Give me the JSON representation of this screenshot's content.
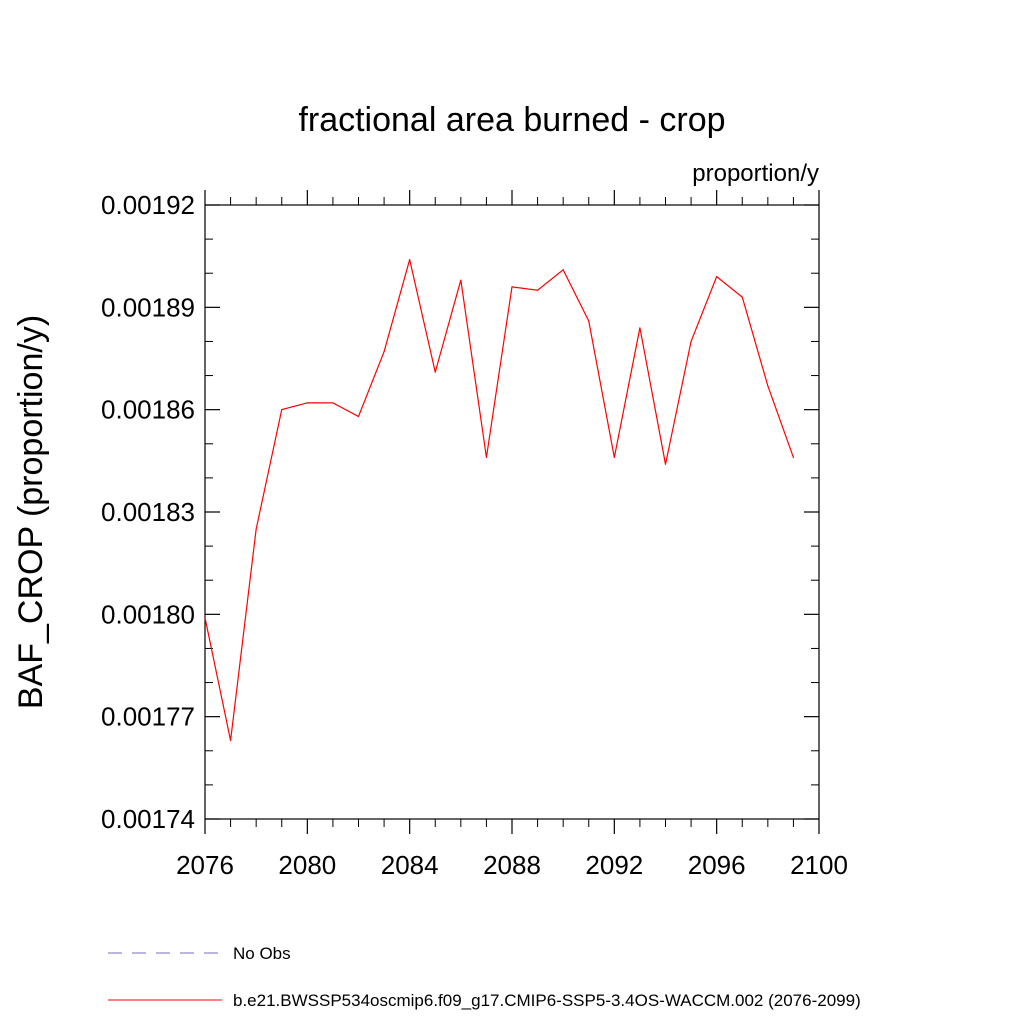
{
  "chart_data": {
    "type": "line",
    "title": "fractional area burned - crop",
    "units": "proportion/y",
    "ylabel": "BAF_CROP  (proportion/y)",
    "xlabel": "",
    "xlim": [
      2076,
      2100
    ],
    "ylim": [
      0.00174,
      0.00192
    ],
    "xticks": [
      2076,
      2080,
      2084,
      2088,
      2092,
      2096,
      2100
    ],
    "xtick_labels": [
      "2076",
      "2080",
      "2084",
      "2088",
      "2092",
      "2096",
      "2100"
    ],
    "yticks": [
      0.00174,
      0.00177,
      0.0018,
      0.00183,
      0.00186,
      0.00189,
      0.00192
    ],
    "ytick_labels": [
      "0.00174",
      "0.00177",
      "0.00180",
      "0.00183",
      "0.00186",
      "0.00189",
      "0.00192"
    ],
    "series": [
      {
        "name": "No Obs",
        "color": "#7b68c0",
        "style": "dashed",
        "x": [],
        "y": []
      },
      {
        "name": "b.e21.BWSSP534oscmip6.f09_g17.CMIP6-SSP5-3.4OS-WACCM.002 (2076-2099)",
        "color": "#ff0000",
        "style": "solid",
        "x": [
          2076,
          2077,
          2078,
          2079,
          2080,
          2081,
          2082,
          2083,
          2084,
          2085,
          2086,
          2087,
          2088,
          2089,
          2090,
          2091,
          2092,
          2093,
          2094,
          2095,
          2096,
          2097,
          2098,
          2099
        ],
        "y": [
          0.001799,
          0.001763,
          0.001825,
          0.00186,
          0.001862,
          0.001862,
          0.001858,
          0.001877,
          0.001904,
          0.001871,
          0.001898,
          0.001846,
          0.001896,
          0.001895,
          0.001901,
          0.001886,
          0.001846,
          0.001884,
          0.001844,
          0.00188,
          0.001899,
          0.001893,
          0.001867,
          0.001846
        ]
      }
    ],
    "legend_position": "bottom"
  }
}
